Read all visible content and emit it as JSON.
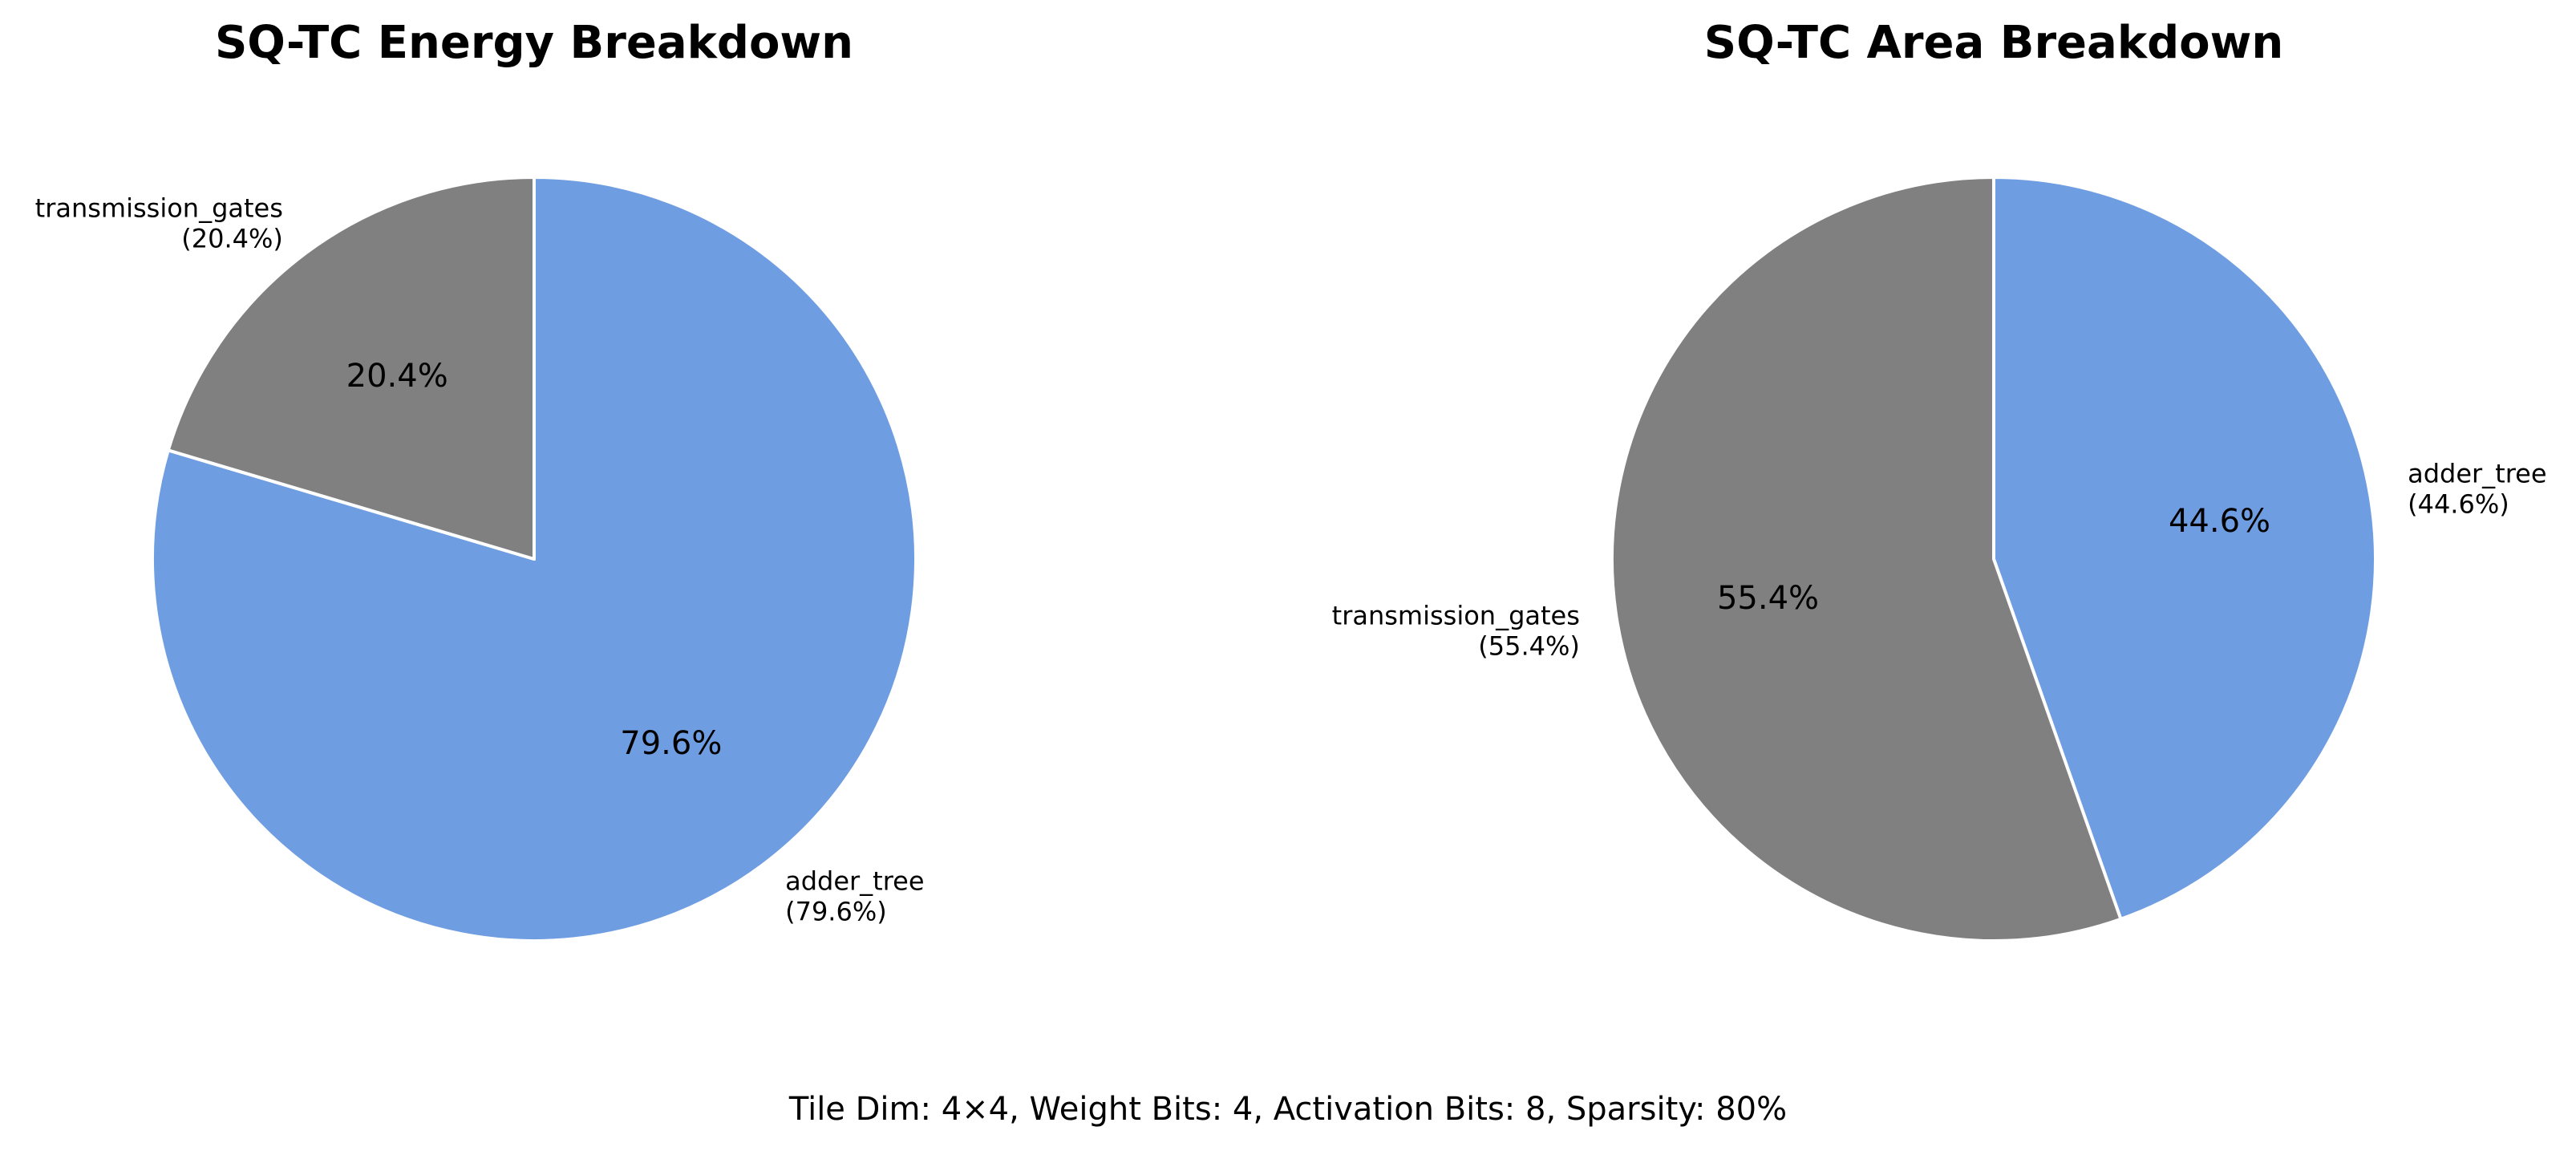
{
  "figure": {
    "footer": "Tile Dim: 4×4, Weight Bits: 4, Activation Bits: 8, Sparsity: 80%"
  },
  "chart_data": [
    {
      "type": "pie",
      "title": "SQ-TC Energy Breakdown",
      "start_angle": 90,
      "direction": "clockwise",
      "slices": [
        {
          "label": "adder_tree",
          "value": 79.6,
          "pct_text": "79.6%",
          "outer_text": "(79.6%)",
          "color": "#6f9de2"
        },
        {
          "label": "transmission_gates",
          "value": 20.4,
          "pct_text": "20.4%",
          "outer_text": "(20.4%)",
          "color": "#808080"
        }
      ]
    },
    {
      "type": "pie",
      "title": "SQ-TC Area Breakdown",
      "start_angle": 90,
      "direction": "clockwise",
      "slices": [
        {
          "label": "adder_tree",
          "value": 44.6,
          "pct_text": "44.6%",
          "outer_text": "(44.6%)",
          "color": "#6f9de2"
        },
        {
          "label": "transmission_gates",
          "value": 55.4,
          "pct_text": "55.4%",
          "outer_text": "(55.4%)",
          "color": "#808080"
        }
      ]
    }
  ]
}
